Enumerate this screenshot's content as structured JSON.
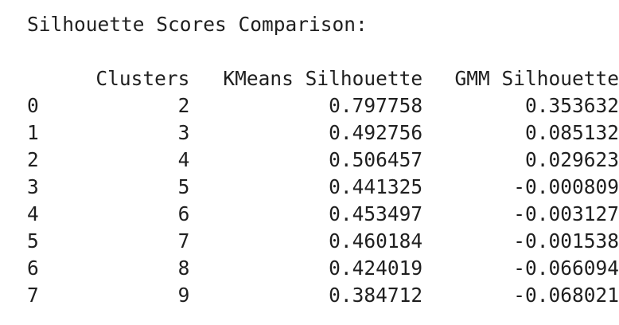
{
  "output": {
    "title": "Silhouette Scores Comparison:",
    "table": {
      "columns": [
        "",
        "Clusters",
        "KMeans Silhouette",
        "GMM Silhouette"
      ],
      "rows": [
        [
          "0",
          "2",
          "0.797758",
          "0.353632"
        ],
        [
          "1",
          "3",
          "0.492756",
          "0.085132"
        ],
        [
          "2",
          "4",
          "0.506457",
          "0.029623"
        ],
        [
          "3",
          "5",
          "0.441325",
          "-0.000809"
        ],
        [
          "4",
          "6",
          "0.453497",
          "-0.003127"
        ],
        [
          "5",
          "7",
          "0.460184",
          "-0.001538"
        ],
        [
          "6",
          "8",
          "0.424019",
          "-0.066094"
        ],
        [
          "7",
          "9",
          "0.384712",
          "-0.068021"
        ]
      ]
    }
  }
}
